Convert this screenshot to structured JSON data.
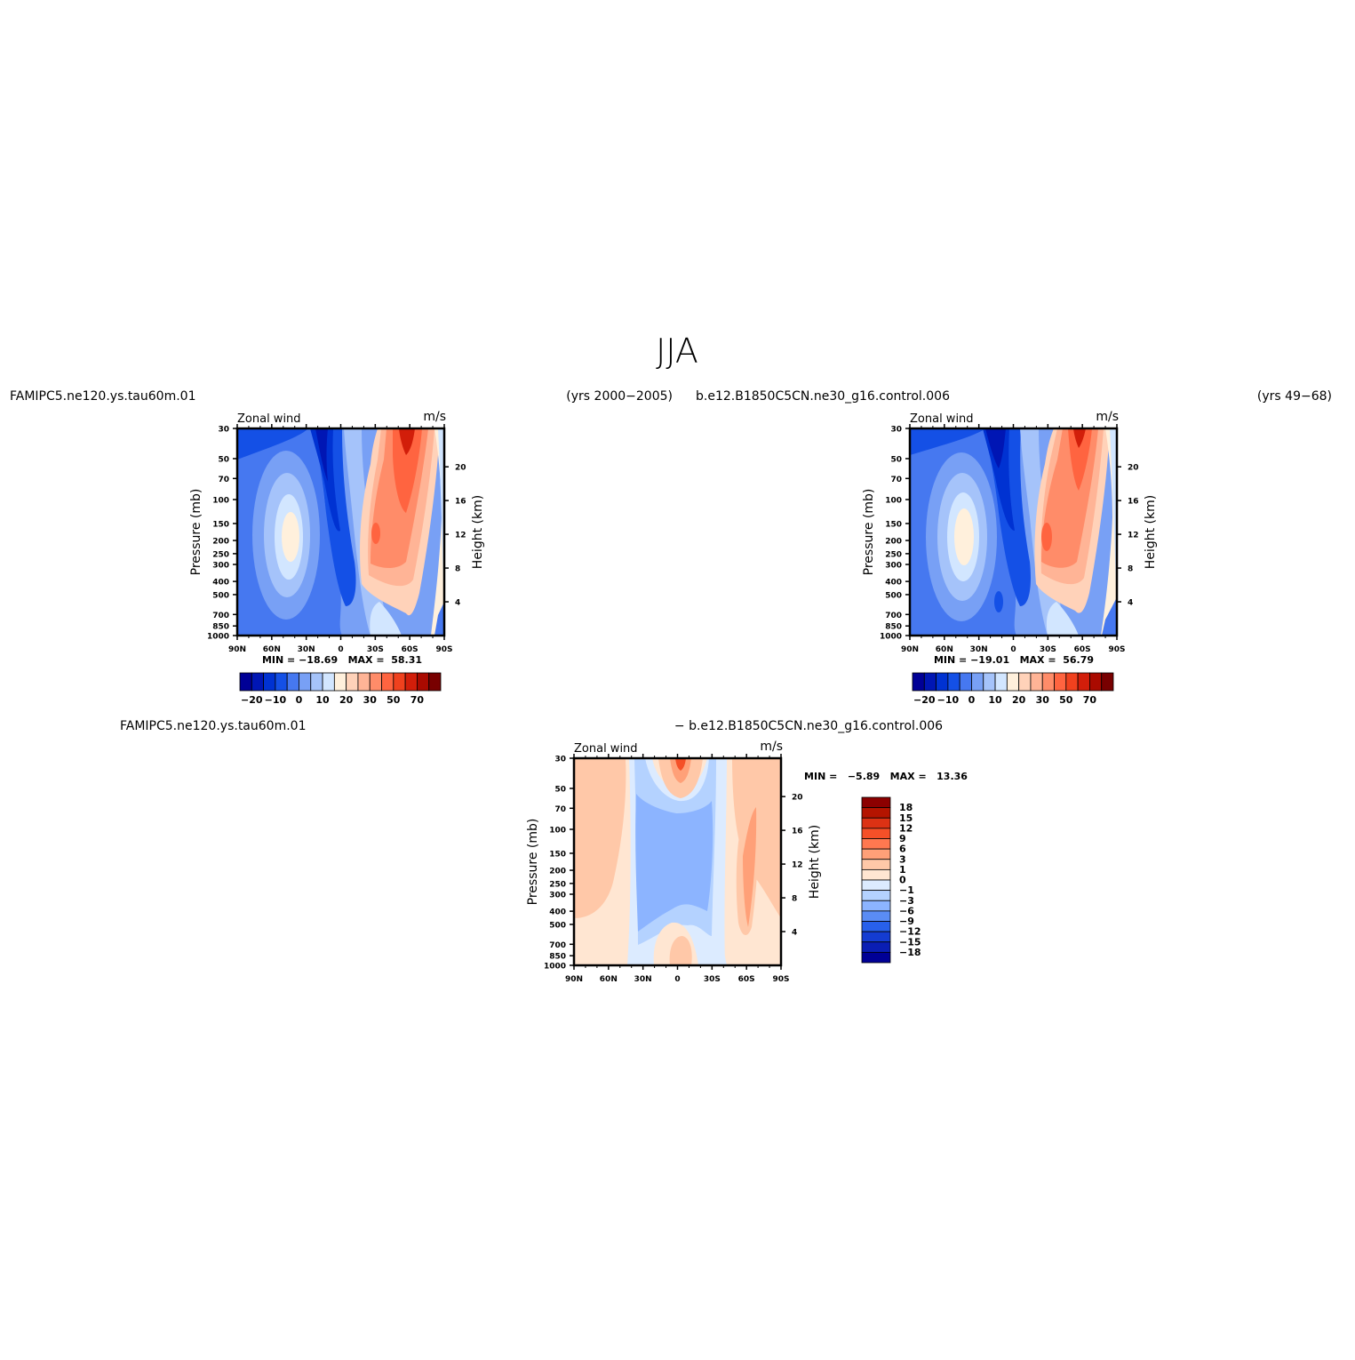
{
  "page_title": "JJA",
  "panels": [
    {
      "left_label": "FAMIPC5.ne120.ys.tau60m.01",
      "right_label": "(yrs 2000−2005)",
      "center_label": "",
      "variable": "Zonal wind",
      "units": "m/s",
      "min_max": "MIN = −18.69   MAX =  58.31"
    },
    {
      "left_label": "b.e12.B1850C5CN.ne30_g16.control.006",
      "right_label": "(yrs 49−68)",
      "center_label": "",
      "variable": "Zonal wind",
      "units": "m/s",
      "min_max": "MIN = −19.01   MAX =  56.79"
    },
    {
      "left_label": "FAMIPC5.ne120.ys.tau60m.01",
      "right_label": "",
      "center_label": "− b.e12.B1850C5CN.ne30_g16.control.006",
      "variable": "Zonal wind",
      "units": "m/s",
      "min_max": "MIN =   −5.89   MAX =   13.36"
    }
  ],
  "colorbars": {
    "horizontal_labels": [
      "−20",
      "−10",
      "0",
      "10",
      "20",
      "30",
      "50",
      "70"
    ],
    "horizontal_colors": [
      "#000096",
      "#0016b4",
      "#0032d2",
      "#1450e6",
      "#4678f0",
      "#78a0f5",
      "#a5c3fa",
      "#d2e6ff",
      "#fff0dc",
      "#ffd2b9",
      "#ffb496",
      "#ff8c69",
      "#ff6440",
      "#f0411e",
      "#d21e0a",
      "#aa0a00",
      "#780000"
    ],
    "vertical_labels": [
      "18",
      "15",
      "12",
      "9",
      "6",
      "3",
      "1",
      "0",
      "−1",
      "−3",
      "−6",
      "−9",
      "−12",
      "−15",
      "−18"
    ],
    "vertical_colors_top_to_bottom": [
      "#8c0000",
      "#b41400",
      "#dc3214",
      "#f55028",
      "#ff7850",
      "#ffa078",
      "#ffc8a8",
      "#ffe6d2",
      "#dcebff",
      "#b4d2ff",
      "#8cb4ff",
      "#5a8cf5",
      "#2860eb",
      "#143cd2",
      "#0a1eb4",
      "#000096"
    ]
  },
  "chart_data": [
    {
      "type": "heatmap",
      "title": "Zonal wind",
      "units": "m/s",
      "xlabel": "",
      "ylabel": "Pressure (mb)",
      "y2label": "Height (km)",
      "x_ticks": [
        "90N",
        "60N",
        "30N",
        "0",
        "30S",
        "60S",
        "90S"
      ],
      "x_values": [
        90,
        60,
        30,
        0,
        -30,
        -60,
        -90
      ],
      "y_ticks": [
        30,
        50,
        70,
        100,
        150,
        200,
        250,
        300,
        400,
        500,
        700,
        850,
        1000
      ],
      "y2_ticks": [
        20,
        16,
        12,
        8,
        4
      ],
      "ylim": [
        1000,
        30
      ],
      "log_scale_y": true,
      "min": -18.69,
      "max": 58.31,
      "contour_levels": [
        -20,
        -15,
        -10,
        -5,
        0,
        5,
        10,
        15,
        20,
        25,
        30,
        40,
        50,
        60,
        70,
        80
      ],
      "features": [
        {
          "lat": -50,
          "pressure": 50,
          "value": 58
        },
        {
          "lat": -35,
          "pressure": 200,
          "value": 40
        },
        {
          "lat": 45,
          "pressure": 200,
          "value": 5
        },
        {
          "lat": 15,
          "pressure": 100,
          "value": -18
        }
      ]
    },
    {
      "type": "heatmap",
      "title": "Zonal wind",
      "units": "m/s",
      "xlabel": "",
      "ylabel": "Pressure (mb)",
      "y2label": "Height (km)",
      "x_ticks": [
        "90N",
        "60N",
        "30N",
        "0",
        "30S",
        "60S",
        "90S"
      ],
      "x_values": [
        90,
        60,
        30,
        0,
        -30,
        -60,
        -90
      ],
      "y_ticks": [
        30,
        50,
        70,
        100,
        150,
        200,
        250,
        300,
        400,
        500,
        700,
        850,
        1000
      ],
      "y2_ticks": [
        20,
        16,
        12,
        8,
        4
      ],
      "ylim": [
        1000,
        30
      ],
      "log_scale_y": true,
      "min": -19.01,
      "max": 56.79,
      "contour_levels": [
        -20,
        -15,
        -10,
        -5,
        0,
        5,
        10,
        15,
        20,
        25,
        30,
        40,
        50,
        60,
        70,
        80
      ],
      "features": [
        {
          "lat": -50,
          "pressure": 40,
          "value": 56
        },
        {
          "lat": -35,
          "pressure": 200,
          "value": 42
        },
        {
          "lat": 45,
          "pressure": 200,
          "value": 6
        },
        {
          "lat": 15,
          "pressure": 50,
          "value": -19
        }
      ]
    },
    {
      "type": "heatmap",
      "title": "Zonal wind",
      "units": "m/s",
      "xlabel": "",
      "ylabel": "Pressure (mb)",
      "y2label": "Height (km)",
      "x_ticks": [
        "90N",
        "60N",
        "30N",
        "0",
        "30S",
        "60S",
        "90S"
      ],
      "x_values": [
        90,
        60,
        30,
        0,
        -30,
        -60,
        -90
      ],
      "y_ticks": [
        30,
        50,
        70,
        100,
        150,
        200,
        250,
        300,
        400,
        500,
        700,
        850,
        1000
      ],
      "y2_ticks": [
        20,
        16,
        12,
        8,
        4
      ],
      "ylim": [
        1000,
        30
      ],
      "log_scale_y": true,
      "min": -5.89,
      "max": 13.36,
      "contour_levels": [
        -18,
        -15,
        -12,
        -9,
        -6,
        -3,
        -1,
        0,
        1,
        3,
        6,
        9,
        12,
        15,
        18
      ],
      "features": [
        {
          "lat": 0,
          "pressure": 35,
          "value": 13
        },
        {
          "lat": 20,
          "pressure": 200,
          "value": -5
        },
        {
          "lat": 65,
          "pressure": 200,
          "value": 2
        },
        {
          "lat": -58,
          "pressure": 300,
          "value": 4
        }
      ]
    }
  ]
}
